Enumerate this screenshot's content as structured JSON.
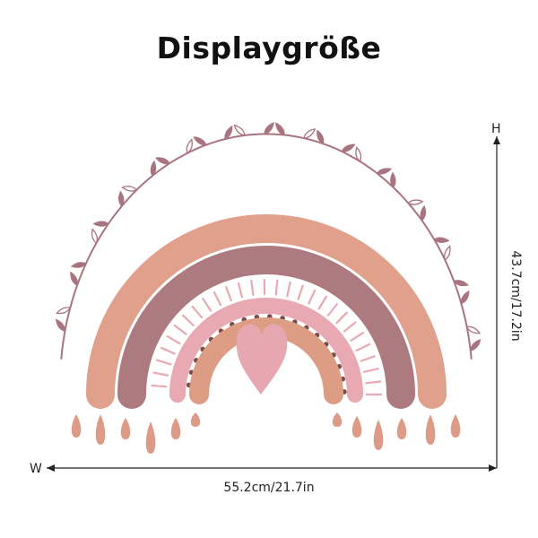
{
  "title": "Displaygröße",
  "dimensions": {
    "width_label": "55.2cm/21.7in",
    "height_label": "43.7cm/17.2in",
    "width_axis": "W",
    "height_axis": "H"
  },
  "colors": {
    "outer_band": "#e0a08c",
    "second_band": "#ad7a80",
    "pink_band": "#e8a9b3",
    "inner_band": "#dd9d85",
    "heart": "#e6a7b1",
    "leaves": "#a97481",
    "dots": "#7a4f49",
    "ray_lines": "#e8a9b3",
    "raindrops": "#dc9a87",
    "dimension_lines": "#222222"
  }
}
